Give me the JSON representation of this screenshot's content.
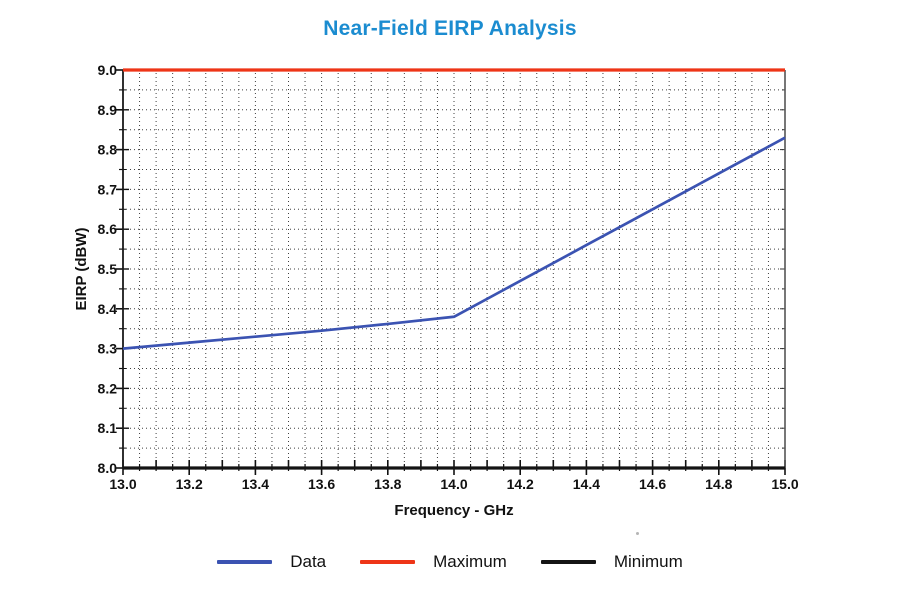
{
  "page": {
    "background": "#ffffff"
  },
  "chart_data": {
    "type": "line",
    "title": "Near-Field EIRP Analysis",
    "title_color": "#1B8CD0",
    "xlabel": "Frequency - GHz",
    "ylabel": "EIRP (dBW)",
    "xlim": [
      13.0,
      15.0
    ],
    "ylim": [
      8.0,
      9.0
    ],
    "x_tick_labels": [
      "13.0",
      "13.2",
      "13.4",
      "13.6",
      "13.8",
      "14.0",
      "14.2",
      "14.4",
      "14.6",
      "14.8",
      "15.0"
    ],
    "y_tick_labels": [
      "8.0",
      "8.1",
      "8.2",
      "8.3",
      "8.4",
      "8.5",
      "8.6",
      "8.7",
      "8.8",
      "8.9",
      "9.0"
    ],
    "minor_step_x": 0.05,
    "minor_step_y": 0.05,
    "grid_style": "dotted",
    "grid_color": "#3f3f3f",
    "legend_position": "bottom",
    "series": [
      {
        "name": "Data",
        "color": "#3B53B2",
        "x": [
          13.0,
          13.2,
          13.4,
          13.6,
          13.8,
          14.0,
          14.2,
          14.4,
          14.6,
          14.8,
          15.0
        ],
        "y": [
          8.3,
          8.315,
          8.33,
          8.345,
          8.362,
          8.38,
          8.47,
          8.56,
          8.65,
          8.74,
          8.83
        ]
      },
      {
        "name": "Maximum",
        "color": "#EE3517",
        "x": [
          13.0,
          15.0
        ],
        "y": [
          9.0,
          9.0
        ]
      },
      {
        "name": "Minimum",
        "color": "#141414",
        "x": [
          13.0,
          15.0
        ],
        "y": [
          8.0,
          8.0
        ]
      }
    ]
  }
}
